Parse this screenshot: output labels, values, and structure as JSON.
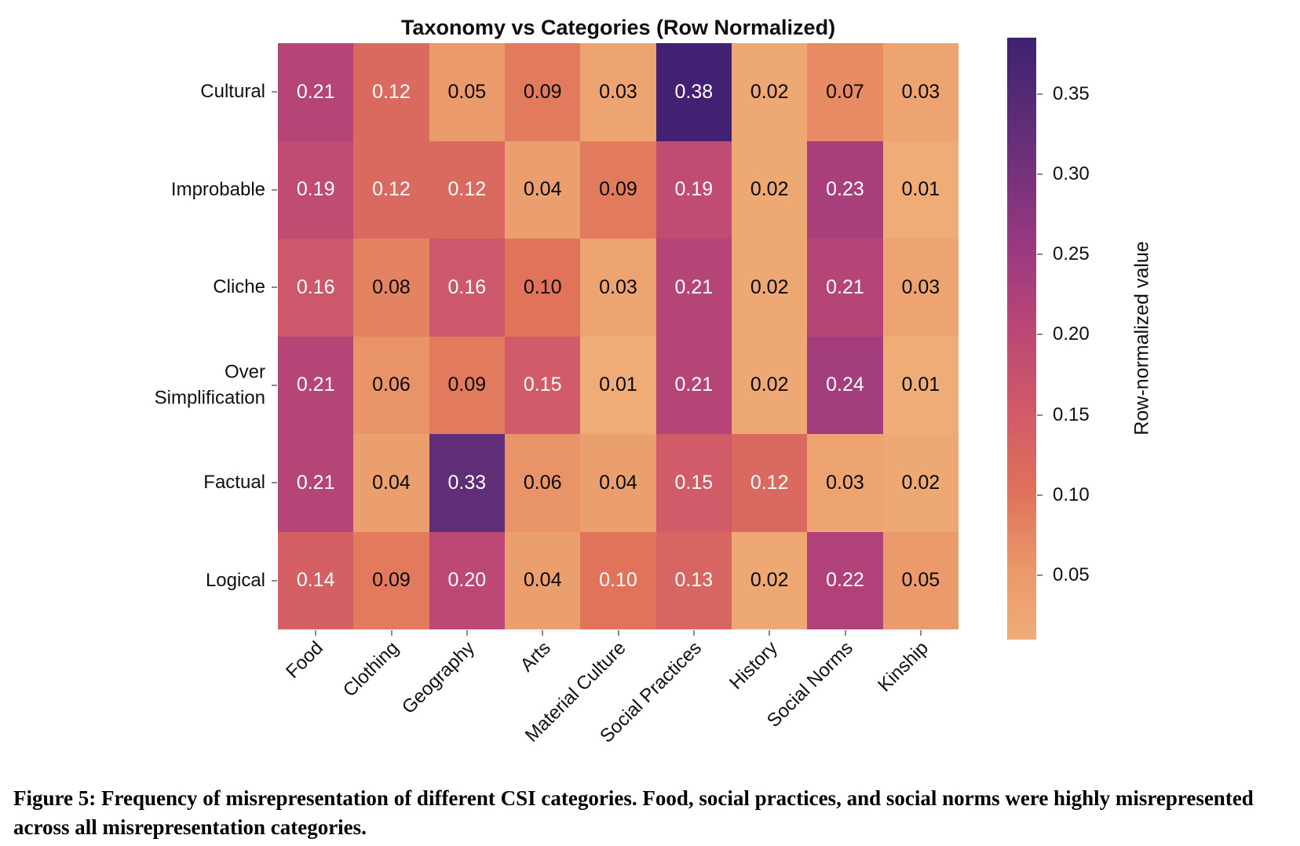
{
  "figure_caption": "Figure 5: Frequency of misrepresentation of different CSI categories. Food, social practices, and social norms were highly misrepresented across all misrepresentation categories.",
  "chart_data": {
    "type": "heatmap",
    "title": "Taxonomy vs Categories (Row Normalized)",
    "rows": [
      "Cultural",
      "Improbable",
      "Cliche",
      "Over\nSimplification",
      "Factual",
      "Logical"
    ],
    "columns": [
      "Food",
      "Clothing",
      "Geography",
      "Arts",
      "Material Culture",
      "Social Practices",
      "History",
      "Social Norms",
      "Kinship"
    ],
    "values": [
      [
        0.21,
        0.12,
        0.05,
        0.09,
        0.03,
        0.38,
        0.02,
        0.07,
        0.03
      ],
      [
        0.19,
        0.12,
        0.12,
        0.04,
        0.09,
        0.19,
        0.02,
        0.23,
        0.01
      ],
      [
        0.16,
        0.08,
        0.16,
        0.1,
        0.03,
        0.21,
        0.02,
        0.21,
        0.03
      ],
      [
        0.21,
        0.06,
        0.09,
        0.15,
        0.01,
        0.21,
        0.02,
        0.24,
        0.01
      ],
      [
        0.21,
        0.04,
        0.33,
        0.06,
        0.04,
        0.15,
        0.12,
        0.03,
        0.02
      ],
      [
        0.14,
        0.09,
        0.2,
        0.04,
        0.1,
        0.13,
        0.02,
        0.22,
        0.05
      ]
    ],
    "value_format_decimals": 2,
    "grid": false,
    "colorbar": {
      "label": "Row-normalized value",
      "ticks": [
        0.05,
        0.1,
        0.15,
        0.2,
        0.25,
        0.3,
        0.35
      ],
      "vmin": 0.01,
      "vmax": 0.385,
      "position": "right"
    },
    "colormap": {
      "name": "flare",
      "stops": [
        {
          "v": 0.01,
          "color": "#efac77"
        },
        {
          "v": 0.05,
          "color": "#eb9b6b"
        },
        {
          "v": 0.1,
          "color": "#e0735a"
        },
        {
          "v": 0.15,
          "color": "#d15b68"
        },
        {
          "v": 0.2,
          "color": "#bc4875"
        },
        {
          "v": 0.25,
          "color": "#9d3a80"
        },
        {
          "v": 0.3,
          "color": "#75327b"
        },
        {
          "v": 0.35,
          "color": "#522a74"
        },
        {
          "v": 0.385,
          "color": "#3f2072"
        }
      ]
    },
    "annotation": {
      "white_text_threshold": 0.115,
      "white_text_exceptions": [
        [
          5,
          4
        ]
      ],
      "white_color": "#ffffff",
      "dark_color": "#0a0a0a"
    }
  }
}
